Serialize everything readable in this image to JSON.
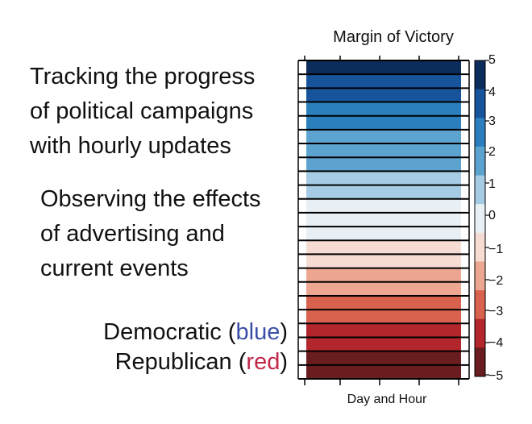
{
  "chart_data": {
    "type": "heatmap",
    "title": "Margin of Victory",
    "xlabel": "Day and Hour",
    "colorbar": {
      "range": [
        -5,
        5
      ],
      "ticks": [
        "5",
        "4",
        "3",
        "2",
        "1",
        "0",
        "−1",
        "−2",
        "−3",
        "−4",
        "−5"
      ],
      "colors": [
        "#0c2d5b",
        "#17549c",
        "#2b7fbc",
        "#5ca3d0",
        "#a5cce4",
        "#e9f0f5",
        "#f6dcd3",
        "#eda691",
        "#d8624d",
        "#b2262c",
        "#6a1d1e"
      ]
    },
    "rows": [
      5,
      4.5,
      4,
      3.5,
      3,
      2.5,
      2,
      1.6,
      1.2,
      0.8,
      0.4,
      0,
      -0.4,
      -0.8,
      -1.2,
      -1.6,
      -2,
      -2.5,
      -3,
      -3.5,
      -4,
      -4.5,
      -5
    ]
  },
  "annotations": {
    "block1": [
      "Tracking the progress",
      "of political campaigns",
      "with hourly updates"
    ],
    "block2": [
      "Observing the effects",
      "of advertising and",
      "current events"
    ],
    "legend_dem_prefix": "Democratic (",
    "legend_dem_word": "blue",
    "legend_rep_prefix": "Republican (",
    "legend_rep_word": "red",
    "legend_close": ")"
  }
}
